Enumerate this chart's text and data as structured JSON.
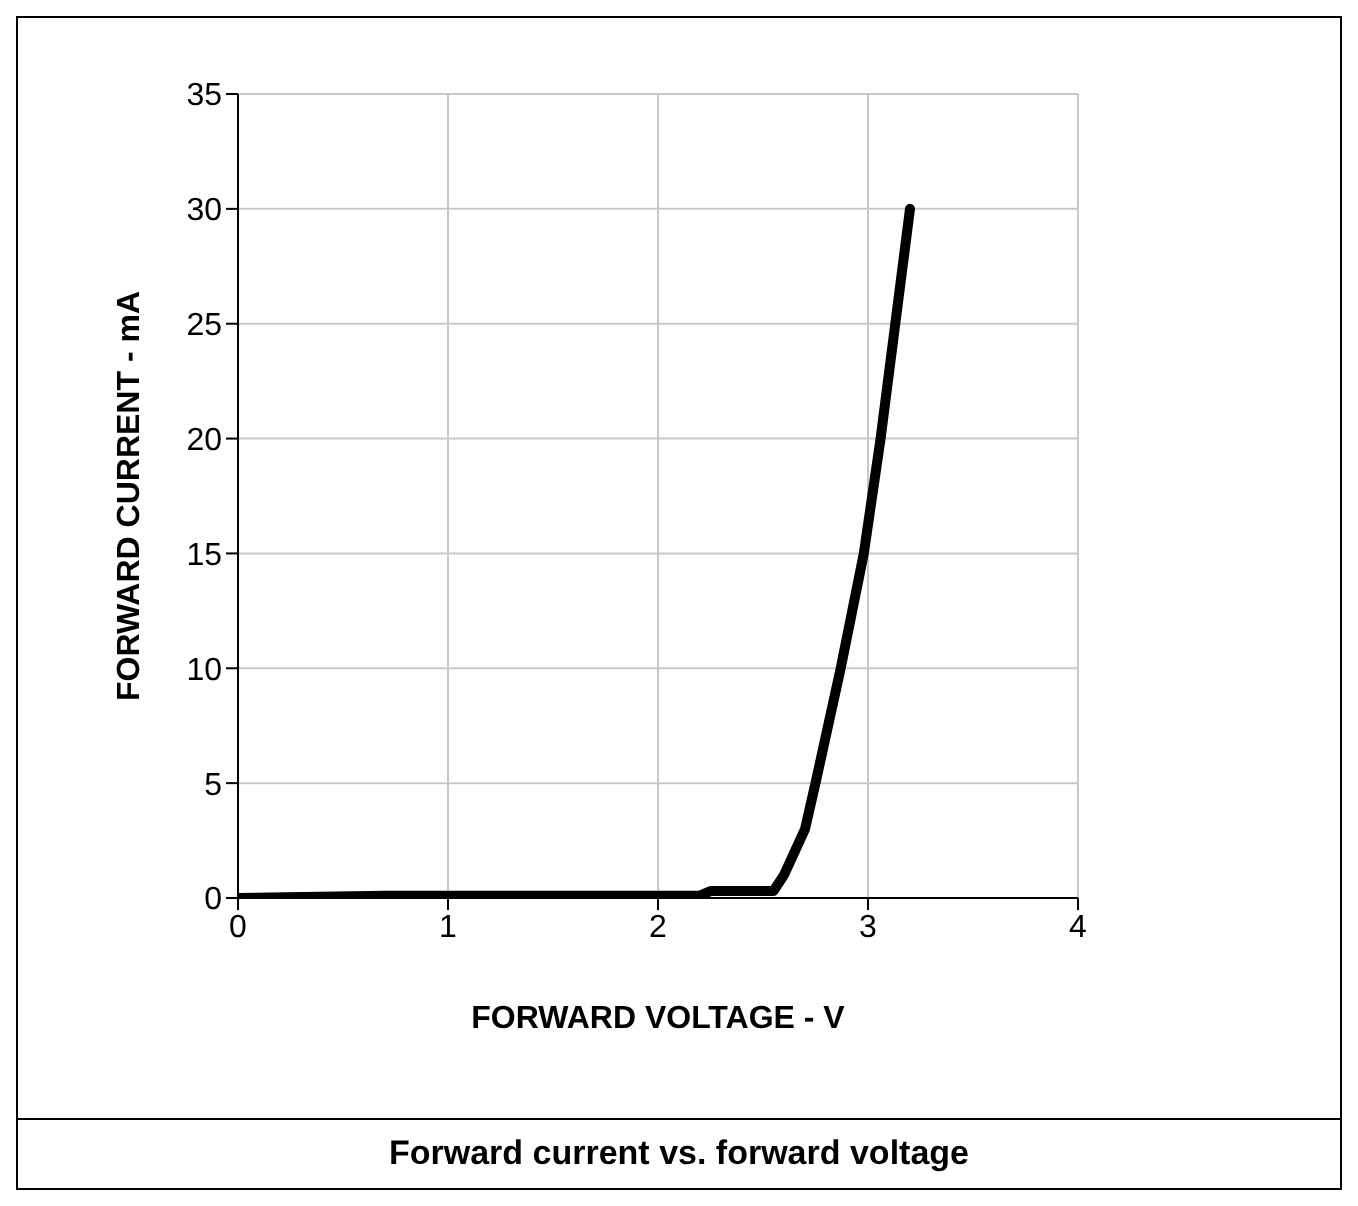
{
  "chart_data": {
    "type": "line",
    "title": "Forward current vs. forward voltage",
    "xlabel": "FORWARD VOLTAGE - V",
    "ylabel": "FORWARD CURRENT - mA",
    "x": [
      0,
      0.7,
      2.2,
      2.25,
      2.55,
      2.6,
      2.7,
      2.75,
      2.87,
      2.98,
      3.06,
      3.13,
      3.2
    ],
    "series": [
      {
        "color": "#000000",
        "values": [
          0,
          0.1,
          0.1,
          0.3,
          0.3,
          1,
          3,
          5,
          10,
          15,
          20,
          25,
          30
        ]
      }
    ],
    "xlim": [
      0,
      4
    ],
    "xticks": [
      0,
      1,
      2,
      3,
      4
    ],
    "ylim": [
      0,
      35
    ],
    "yticks": [
      0,
      5,
      10,
      15,
      20,
      25,
      30,
      35
    ],
    "grid": true,
    "legend": false,
    "marker": "none",
    "line_style": "solid"
  }
}
